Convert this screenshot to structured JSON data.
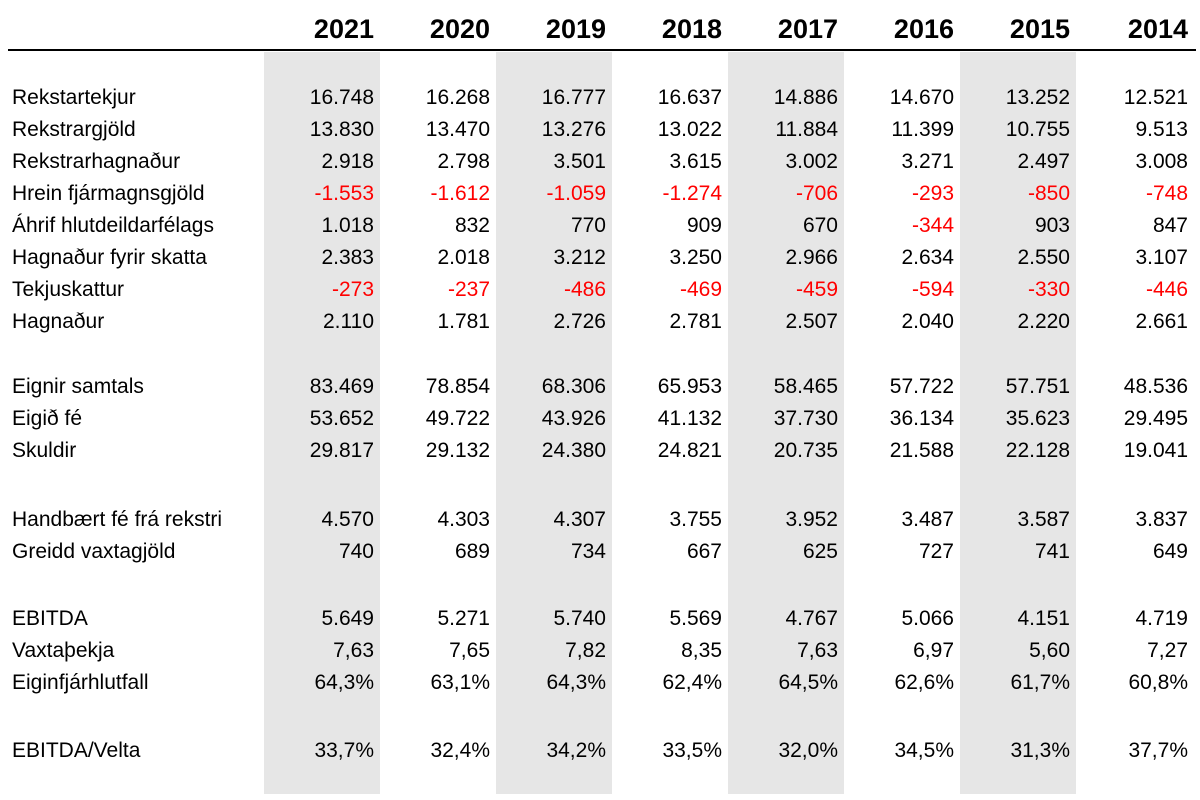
{
  "years": [
    "2021",
    "2020",
    "2019",
    "2018",
    "2017",
    "2016",
    "2015",
    "2014"
  ],
  "colors": {
    "negative": "#ff0000",
    "shaded_column": "#e6e6e6"
  },
  "rows": [
    {
      "label": "Rekstartekjur",
      "values": [
        "16.748",
        "16.268",
        "16.777",
        "16.637",
        "14.886",
        "14.670",
        "13.252",
        "12.521"
      ]
    },
    {
      "label": "Rekstrargjöld",
      "values": [
        "13.830",
        "13.470",
        "13.276",
        "13.022",
        "11.884",
        "11.399",
        "10.755",
        "9.513"
      ]
    },
    {
      "label": "Rekstrarhagnaður",
      "values": [
        "2.918",
        "2.798",
        "3.501",
        "3.615",
        "3.002",
        "3.271",
        "2.497",
        "3.008"
      ]
    },
    {
      "label": "Hrein fjármagnsgjöld",
      "values": [
        "-1.553",
        "-1.612",
        "-1.059",
        "-1.274",
        "-706",
        "-293",
        "-850",
        "-748"
      ]
    },
    {
      "label": "Áhrif hlutdeildarfélags",
      "values": [
        "1.018",
        "832",
        "770",
        "909",
        "670",
        "-344",
        "903",
        "847"
      ]
    },
    {
      "label": "Hagnaður fyrir skatta",
      "values": [
        "2.383",
        "2.018",
        "3.212",
        "3.250",
        "2.966",
        "2.634",
        "2.550",
        "3.107"
      ]
    },
    {
      "label": "Tekjuskattur",
      "values": [
        "-273",
        "-237",
        "-486",
        "-469",
        "-459",
        "-594",
        "-330",
        "-446"
      ]
    },
    {
      "label": "Hagnaður",
      "values": [
        "2.110",
        "1.781",
        "2.726",
        "2.781",
        "2.507",
        "2.040",
        "2.220",
        "2.661"
      ]
    },
    {
      "label": "Eignir samtals",
      "values": [
        "83.469",
        "78.854",
        "68.306",
        "65.953",
        "58.465",
        "57.722",
        "57.751",
        "48.536"
      ]
    },
    {
      "label": "Eigið fé",
      "values": [
        "53.652",
        "49.722",
        "43.926",
        "41.132",
        "37.730",
        "36.134",
        "35.623",
        "29.495"
      ]
    },
    {
      "label": "Skuldir",
      "values": [
        "29.817",
        "29.132",
        "24.380",
        "24.821",
        "20.735",
        "21.588",
        "22.128",
        "19.041"
      ]
    },
    {
      "label": "Handbært fé frá rekstri",
      "values": [
        "4.570",
        "4.303",
        "4.307",
        "3.755",
        "3.952",
        "3.487",
        "3.587",
        "3.837"
      ]
    },
    {
      "label": "Greidd vaxtagjöld",
      "values": [
        "740",
        "689",
        "734",
        "667",
        "625",
        "727",
        "741",
        "649"
      ]
    },
    {
      "label": "EBITDA",
      "values": [
        "5.649",
        "5.271",
        "5.740",
        "5.569",
        "4.767",
        "5.066",
        "4.151",
        "4.719"
      ]
    },
    {
      "label": "Vaxtaþekja",
      "values": [
        "7,63",
        "7,65",
        "7,82",
        "8,35",
        "7,63",
        "6,97",
        "5,60",
        "7,27"
      ]
    },
    {
      "label": "Eiginfjárhlutfall",
      "values": [
        "64,3%",
        "63,1%",
        "64,3%",
        "62,4%",
        "64,5%",
        "62,6%",
        "61,7%",
        "60,8%"
      ]
    },
    {
      "label": "EBITDA/Velta",
      "values": [
        "33,7%",
        "32,4%",
        "34,2%",
        "33,5%",
        "32,0%",
        "34,5%",
        "31,3%",
        "37,7%"
      ]
    }
  ]
}
